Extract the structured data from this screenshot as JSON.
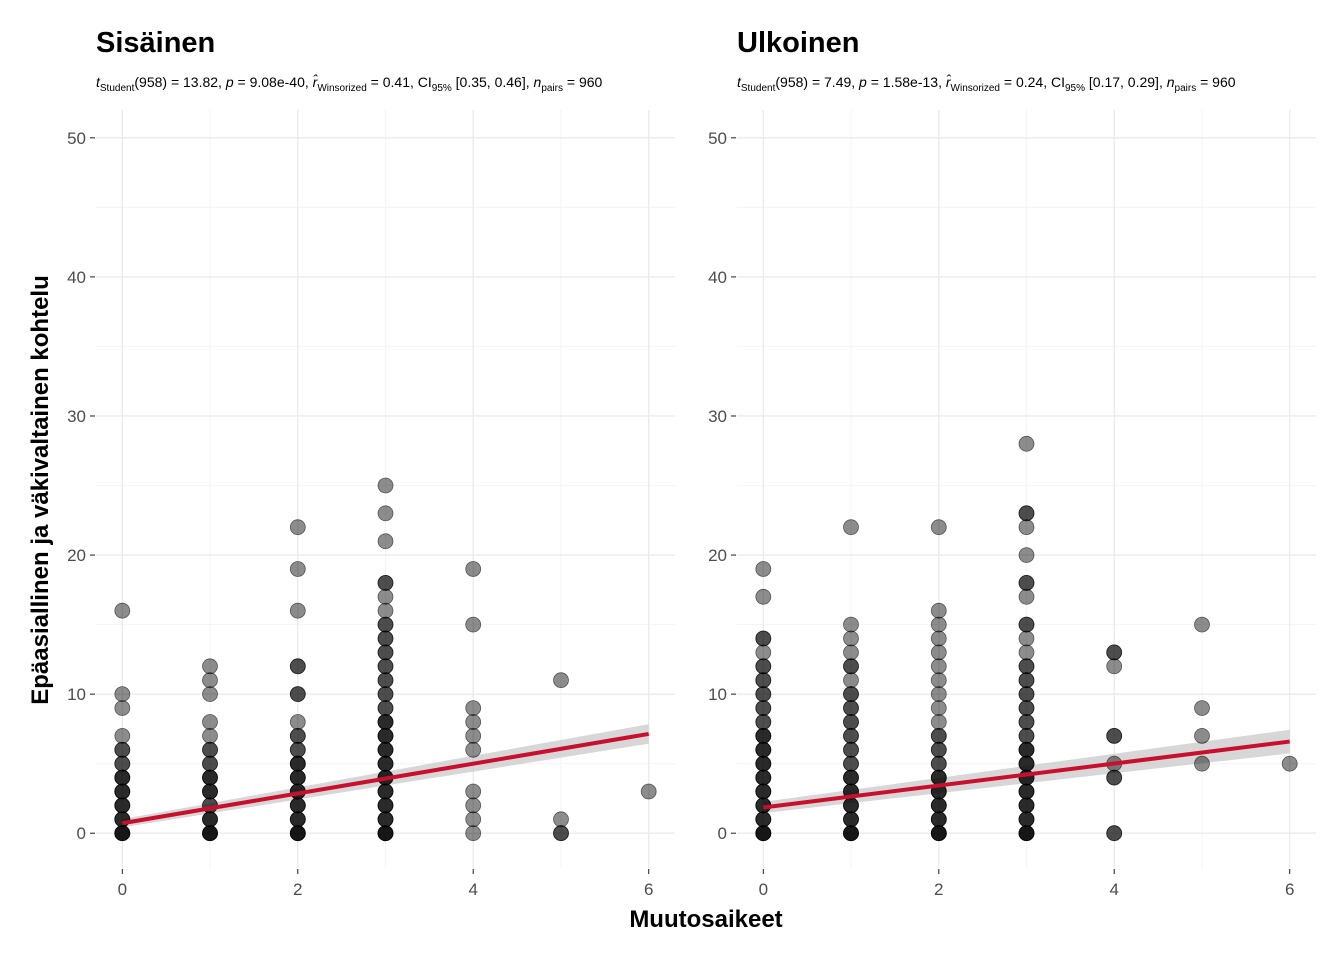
{
  "figure": {
    "x_axis_title": "Muutosaikeet",
    "y_axis_title": "Epäasiallinen ja väkivaltainen kohtelu"
  },
  "colors": {
    "line": "#c8102e",
    "band": "#bdbdbd",
    "points": "#000000"
  },
  "chart_data": [
    {
      "type": "scatter",
      "title": "Sisäinen",
      "subtitle": {
        "t_label": "t",
        "t_sub": "Student",
        "t_text": "(958) = 13.82, ",
        "p_label": "p",
        "p_text": " = 9.08e-40, ",
        "r_label": "r̂",
        "r_sub": "Winsorized",
        "r_text": " = 0.41, CI",
        "ci_sub": "95%",
        "ci_text": " [0.35, 0.46], ",
        "n_label": "n",
        "n_sub": "pairs",
        "n_text": " = 960"
      },
      "xlim": [
        -0.3,
        6.3
      ],
      "ylim": [
        -2.5,
        52
      ],
      "x_ticks": [
        "0",
        "2",
        "4",
        "6"
      ],
      "y_ticks": [
        "0",
        "10",
        "20",
        "30",
        "40",
        "50"
      ],
      "points": {
        "0": [
          0,
          0,
          0,
          0,
          1,
          1,
          1,
          2,
          2,
          2,
          3,
          3,
          3,
          4,
          4,
          4,
          5,
          5,
          6,
          6,
          7,
          9,
          10,
          16
        ],
        "1": [
          0,
          0,
          0,
          0,
          1,
          1,
          1,
          2,
          2,
          3,
          3,
          3,
          4,
          4,
          4,
          5,
          5,
          6,
          6,
          7,
          8,
          10,
          11,
          12
        ],
        "2": [
          0,
          0,
          0,
          0,
          1,
          1,
          1,
          2,
          2,
          2,
          3,
          3,
          3,
          4,
          4,
          4,
          5,
          5,
          5,
          6,
          6,
          7,
          7,
          8,
          10,
          10,
          12,
          12,
          16,
          19,
          22
        ],
        "3": [
          0,
          0,
          0,
          0,
          1,
          1,
          1,
          2,
          2,
          2,
          3,
          3,
          3,
          4,
          4,
          4,
          5,
          5,
          5,
          6,
          6,
          6,
          7,
          7,
          7,
          8,
          8,
          8,
          9,
          9,
          10,
          10,
          11,
          11,
          12,
          12,
          13,
          13,
          14,
          14,
          15,
          15,
          16,
          17,
          18,
          18,
          21,
          23,
          25
        ],
        "4": [
          0,
          1,
          2,
          3,
          6,
          7,
          8,
          9,
          15,
          19
        ],
        "5": [
          0,
          0,
          1,
          11
        ],
        "6": [
          3
        ]
      },
      "fit": {
        "intercept": 0.72,
        "slope": 1.07,
        "ci_halfwidth_at_0": 0.3,
        "ci_halfwidth_at_6": 0.7
      }
    },
    {
      "type": "scatter",
      "title": "Ulkoinen",
      "subtitle": {
        "t_label": "t",
        "t_sub": "Student",
        "t_text": "(958) = 7.49, ",
        "p_label": "p",
        "p_text": " = 1.58e-13, ",
        "r_label": "r̂",
        "r_sub": "Winsorized",
        "r_text": " = 0.24, CI",
        "ci_sub": "95%",
        "ci_text": " [0.17, 0.29], ",
        "n_label": "n",
        "n_sub": "pairs",
        "n_text": " = 960"
      },
      "xlim": [
        -0.3,
        6.3
      ],
      "ylim": [
        -2.5,
        52
      ],
      "x_ticks": [
        "0",
        "2",
        "4",
        "6"
      ],
      "y_ticks": [
        "0",
        "10",
        "20",
        "30",
        "40",
        "50"
      ],
      "points": {
        "0": [
          0,
          0,
          0,
          0,
          1,
          1,
          1,
          2,
          2,
          2,
          3,
          3,
          3,
          4,
          4,
          4,
          5,
          5,
          5,
          6,
          6,
          6,
          7,
          7,
          7,
          8,
          8,
          9,
          9,
          10,
          10,
          11,
          11,
          12,
          12,
          13,
          14,
          14,
          17,
          19
        ],
        "1": [
          0,
          0,
          0,
          0,
          1,
          1,
          1,
          2,
          2,
          2,
          3,
          3,
          3,
          4,
          4,
          4,
          5,
          5,
          6,
          6,
          7,
          7,
          8,
          8,
          9,
          9,
          10,
          10,
          11,
          12,
          12,
          13,
          14,
          15,
          22
        ],
        "2": [
          0,
          0,
          0,
          0,
          1,
          1,
          1,
          2,
          2,
          2,
          3,
          3,
          3,
          4,
          4,
          4,
          5,
          5,
          6,
          6,
          7,
          7,
          8,
          9,
          10,
          11,
          12,
          13,
          14,
          15,
          16,
          22
        ],
        "3": [
          0,
          0,
          0,
          0,
          1,
          1,
          1,
          2,
          2,
          2,
          3,
          3,
          3,
          4,
          4,
          4,
          5,
          5,
          5,
          6,
          6,
          6,
          7,
          7,
          8,
          8,
          9,
          9,
          10,
          10,
          11,
          11,
          12,
          12,
          13,
          14,
          15,
          15,
          17,
          18,
          18,
          20,
          22,
          23,
          23,
          28
        ],
        "4": [
          0,
          0,
          4,
          4,
          5,
          7,
          7,
          12,
          13,
          13
        ],
        "5": [
          5,
          7,
          9,
          15
        ],
        "6": [
          5
        ]
      },
      "fit": {
        "intercept": 1.85,
        "slope": 0.79,
        "ci_halfwidth_at_0": 0.4,
        "ci_halfwidth_at_6": 0.85
      }
    }
  ]
}
